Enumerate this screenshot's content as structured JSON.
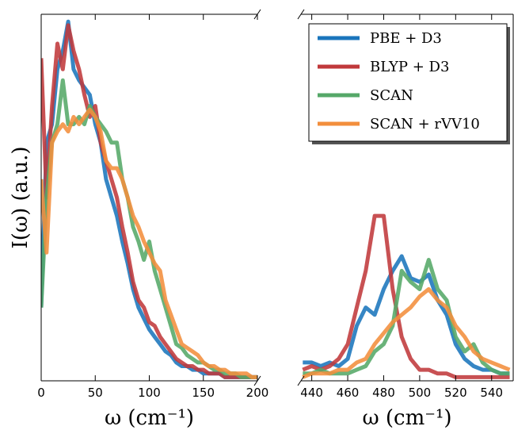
{
  "chart_data": [
    {
      "type": "line",
      "ylabel": "I(ω) (a.u.)",
      "xlabel": "ω (cm⁻¹)",
      "x": [
        0,
        5,
        10,
        15,
        20,
        25,
        30,
        35,
        40,
        45,
        50,
        55,
        60,
        65,
        70,
        75,
        80,
        85,
        90,
        95,
        100,
        105,
        110,
        115,
        120,
        125,
        130,
        135,
        140,
        145,
        150,
        155,
        160,
        165,
        170,
        175,
        180,
        185,
        190,
        195,
        200
      ],
      "xlim": [
        0,
        200
      ],
      "xticks": [
        0,
        50,
        100,
        150,
        200
      ],
      "ylim": [
        0,
        1
      ],
      "series": [
        {
          "color": "#1a75bc",
          "values": [
            0.2,
            0.65,
            0.7,
            0.85,
            0.9,
            0.98,
            0.85,
            0.82,
            0.8,
            0.78,
            0.7,
            0.65,
            0.55,
            0.5,
            0.45,
            0.38,
            0.32,
            0.25,
            0.2,
            0.17,
            0.14,
            0.12,
            0.1,
            0.08,
            0.07,
            0.05,
            0.04,
            0.04,
            0.03,
            0.03,
            0.02,
            0.02,
            0.02,
            0.02,
            0.01,
            0.01,
            0.01,
            0.01,
            0.01,
            0.01,
            0.01
          ]
        },
        {
          "color": "#c0393b",
          "values": [
            0.88,
            0.5,
            0.75,
            0.92,
            0.85,
            0.97,
            0.9,
            0.85,
            0.78,
            0.72,
            0.75,
            0.65,
            0.6,
            0.55,
            0.5,
            0.42,
            0.35,
            0.27,
            0.22,
            0.2,
            0.16,
            0.15,
            0.12,
            0.1,
            0.08,
            0.06,
            0.05,
            0.04,
            0.04,
            0.03,
            0.03,
            0.02,
            0.02,
            0.02,
            0.01,
            0.01,
            0.01,
            0.01,
            0.01,
            0.01,
            0.01
          ]
        },
        {
          "color": "#55a868",
          "values": [
            0.2,
            0.5,
            0.65,
            0.7,
            0.82,
            0.7,
            0.7,
            0.72,
            0.7,
            0.75,
            0.72,
            0.7,
            0.68,
            0.65,
            0.65,
            0.55,
            0.5,
            0.42,
            0.38,
            0.33,
            0.38,
            0.3,
            0.25,
            0.2,
            0.15,
            0.1,
            0.09,
            0.07,
            0.06,
            0.05,
            0.05,
            0.04,
            0.03,
            0.03,
            0.02,
            0.02,
            0.02,
            0.01,
            0.01,
            0.01,
            0.01
          ]
        },
        {
          "color": "#f28e3c",
          "values": [
            0.55,
            0.35,
            0.65,
            0.68,
            0.7,
            0.68,
            0.72,
            0.7,
            0.72,
            0.74,
            0.72,
            0.68,
            0.6,
            0.58,
            0.58,
            0.55,
            0.5,
            0.45,
            0.42,
            0.38,
            0.35,
            0.32,
            0.3,
            0.22,
            0.18,
            0.14,
            0.1,
            0.09,
            0.08,
            0.07,
            0.05,
            0.04,
            0.04,
            0.03,
            0.03,
            0.02,
            0.02,
            0.02,
            0.02,
            0.01,
            0.01
          ]
        }
      ]
    },
    {
      "type": "line",
      "xlabel": "ω (cm⁻¹)",
      "legend": "upper right",
      "x": [
        435,
        440,
        445,
        450,
        455,
        460,
        465,
        470,
        475,
        480,
        485,
        490,
        495,
        500,
        505,
        510,
        515,
        520,
        525,
        530,
        535,
        540,
        545,
        550
      ],
      "xlim": [
        434,
        552
      ],
      "xticks": [
        440,
        460,
        480,
        500,
        520,
        540
      ],
      "ylim": [
        0,
        1
      ],
      "series": [
        {
          "name": "PBE + D3",
          "color": "#1a75bc",
          "values": [
            0.05,
            0.05,
            0.04,
            0.05,
            0.04,
            0.06,
            0.15,
            0.2,
            0.18,
            0.25,
            0.3,
            0.34,
            0.28,
            0.27,
            0.29,
            0.22,
            0.18,
            0.1,
            0.06,
            0.04,
            0.03,
            0.03,
            0.02,
            0.02
          ]
        },
        {
          "name": "BLYP + D3",
          "color": "#c0393b",
          "values": [
            0.03,
            0.04,
            0.03,
            0.04,
            0.06,
            0.1,
            0.2,
            0.3,
            0.45,
            0.45,
            0.25,
            0.12,
            0.06,
            0.03,
            0.03,
            0.02,
            0.02,
            0.01,
            0.01,
            0.01,
            0.01,
            0.01,
            0.01,
            0.01
          ]
        },
        {
          "name": "SCAN",
          "color": "#55a868",
          "values": [
            0.02,
            0.02,
            0.03,
            0.02,
            0.02,
            0.02,
            0.03,
            0.04,
            0.08,
            0.1,
            0.15,
            0.3,
            0.27,
            0.25,
            0.33,
            0.25,
            0.22,
            0.12,
            0.08,
            0.1,
            0.05,
            0.03,
            0.02,
            0.02
          ]
        },
        {
          "name": "SCAN + rVV10",
          "color": "#f28e3c",
          "values": [
            0.01,
            0.02,
            0.02,
            0.02,
            0.03,
            0.03,
            0.05,
            0.06,
            0.1,
            0.13,
            0.16,
            0.18,
            0.2,
            0.23,
            0.25,
            0.22,
            0.2,
            0.15,
            0.12,
            0.08,
            0.06,
            0.05,
            0.04,
            0.03
          ]
        }
      ]
    }
  ]
}
